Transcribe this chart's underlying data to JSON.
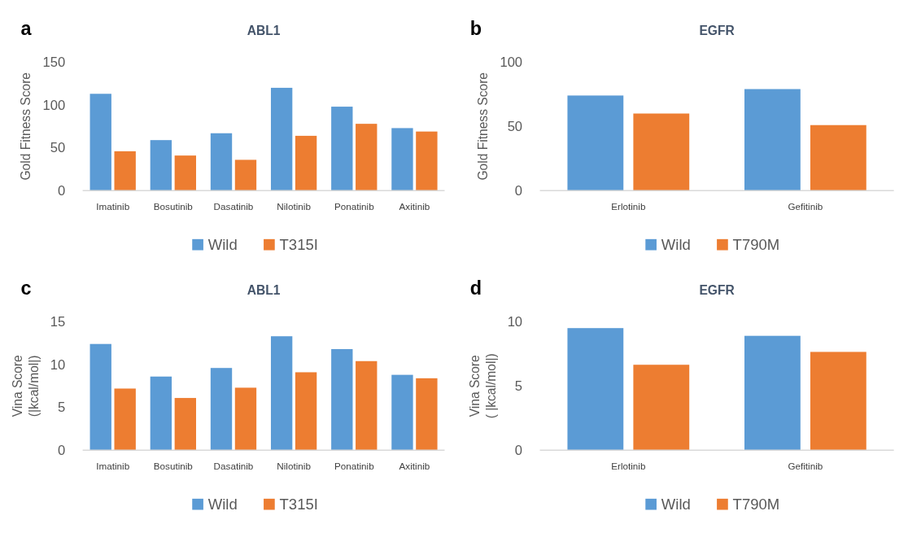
{
  "chart_data": [
    {
      "type": "bar",
      "title": "ABL1",
      "annotations": [
        "a"
      ],
      "ylabel": "Gold Fitness Score",
      "categories": [
        "Imatinib",
        "Bosutinib",
        "Dasatinib",
        "Nilotinib",
        "Ponatinib",
        "Axitinib"
      ],
      "ylim": [
        0,
        150
      ],
      "yticks": [
        0,
        50,
        100,
        150
      ],
      "grid": false,
      "legend": "bottom",
      "series": [
        {
          "name": "Wild",
          "color": "#5b9bd5",
          "values": [
            113,
            59,
            67,
            120,
            98,
            73
          ]
        },
        {
          "name": "T315I",
          "color": "#ed7d31",
          "values": [
            46,
            41,
            36,
            64,
            78,
            69
          ]
        }
      ]
    },
    {
      "type": "bar",
      "title": "EGFR",
      "annotations": [
        "b"
      ],
      "ylabel": "Gold Fitness Score",
      "categories": [
        "Erlotinib",
        "Gefitinib"
      ],
      "ylim": [
        0,
        100
      ],
      "yticks": [
        0,
        50,
        100
      ],
      "grid": false,
      "legend": "bottom",
      "series": [
        {
          "name": "Wild",
          "color": "#5b9bd5",
          "values": [
            74,
            79
          ]
        },
        {
          "name": "T790M",
          "color": "#ed7d31",
          "values": [
            60,
            51
          ]
        }
      ]
    },
    {
      "type": "bar",
      "title": "ABL1",
      "annotations": [
        "c"
      ],
      "ylabel": "Vina Score\n(|kcal/mol|)",
      "categories": [
        "Imatinib",
        "Bosutinib",
        "Dasatinib",
        "Nilotinib",
        "Ponatinib",
        "Axitinib"
      ],
      "ylim": [
        0,
        15
      ],
      "yticks": [
        0,
        5,
        10,
        15
      ],
      "grid": false,
      "legend": "bottom",
      "series": [
        {
          "name": "Wild",
          "color": "#5b9bd5",
          "values": [
            12.4,
            8.6,
            9.6,
            13.3,
            11.8,
            8.8
          ]
        },
        {
          "name": "T315I",
          "color": "#ed7d31",
          "values": [
            7.2,
            6.1,
            7.3,
            9.1,
            10.4,
            8.4
          ]
        }
      ]
    },
    {
      "type": "bar",
      "title": "EGFR",
      "annotations": [
        "d"
      ],
      "ylabel": "Vina Score\n( |kcal/mol|)",
      "categories": [
        "Erlotinib",
        "Gefitinib"
      ],
      "ylim": [
        0,
        10
      ],
      "yticks": [
        0,
        5,
        10
      ],
      "grid": false,
      "legend": "bottom",
      "series": [
        {
          "name": "Wild",
          "color": "#5b9bd5",
          "values": [
            9.5,
            8.9
          ]
        },
        {
          "name": "T790M",
          "color": "#ed7d31",
          "values": [
            6.65,
            7.65
          ]
        }
      ]
    }
  ]
}
